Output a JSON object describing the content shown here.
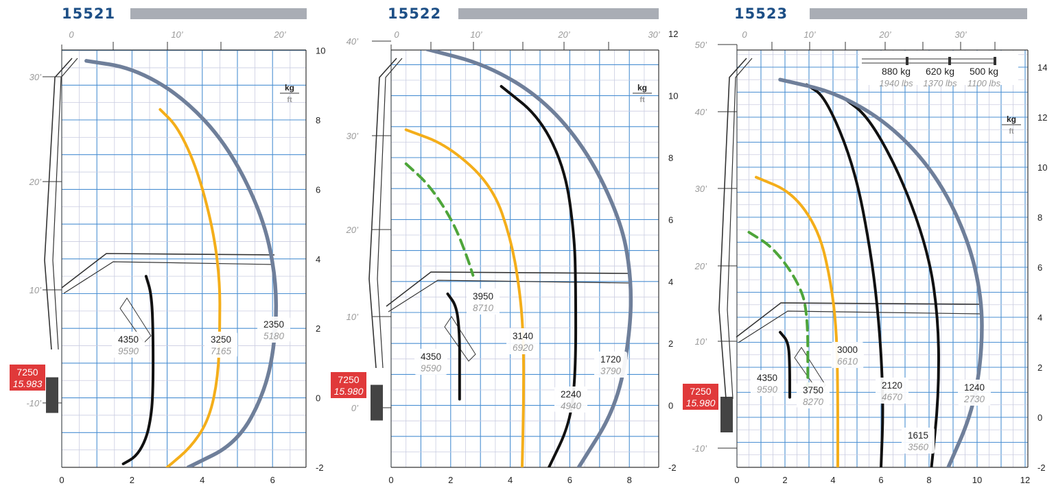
{
  "colors": {
    "blue_grid": "#4a8fd2",
    "light_grid": "#c9cce0",
    "title": "#1d4f86",
    "gray_curve": "#6f7f9a",
    "orange": "#f4ae1a",
    "black": "#111111",
    "green": "#4ea53a",
    "red": "#e0393a",
    "boom": "#333333"
  },
  "units": {
    "kg": "kg",
    "ft": "ft"
  },
  "legend": {
    "kg": [
      "880 kg",
      "620 kg",
      "500 kg"
    ],
    "lbs": [
      "1940 lbs",
      "1370 lbs",
      "1100 lbs"
    ]
  },
  "chart_data": [
    {
      "type": "line",
      "title": "15521",
      "xlabel": "",
      "ylabel": "",
      "xlim": [
        0,
        7
      ],
      "ylim": [
        -2,
        10
      ],
      "x_ticks": [
        "0",
        "2",
        "4",
        "6"
      ],
      "y_ticks": [
        "-2",
        "0",
        "2",
        "4",
        "6",
        "8",
        "10"
      ],
      "ft_x_ticks": [
        "0",
        "10’",
        "20’"
      ],
      "ft_y_ticks": [
        "-10’",
        "10’",
        "20’",
        "30’"
      ],
      "base": {
        "kg": "7250",
        "lb": "15.983"
      },
      "series": [
        {
          "name": "4350",
          "color": "black",
          "dash": false,
          "x": [
            2.4,
            2.55,
            2.6,
            2.6,
            2.5,
            2.35,
            2.1,
            1.75
          ],
          "y": [
            3.5,
            3.0,
            2.0,
            0.0,
            -0.8,
            -1.3,
            -1.7,
            -1.9
          ]
        },
        {
          "name": "3250",
          "color": "orange",
          "dash": false,
          "x": [
            2.8,
            3.3,
            3.85,
            4.3,
            4.5,
            4.5,
            4.45,
            4.2,
            3.7,
            3.0
          ],
          "y": [
            8.3,
            7.8,
            6.6,
            4.9,
            3.4,
            2.0,
            0.6,
            -0.6,
            -1.4,
            -2.0
          ]
        },
        {
          "name": "2350",
          "color": "gray",
          "dash": false,
          "x": [
            0.7,
            2.0,
            3.4,
            4.7,
            5.7,
            6.1,
            6.1,
            5.8,
            5.0,
            3.6
          ],
          "y": [
            9.7,
            9.5,
            8.7,
            7.3,
            5.3,
            3.5,
            1.8,
            0.2,
            -1.3,
            -2.0
          ]
        }
      ],
      "labels": [
        {
          "kg": "4350",
          "lb": "9590"
        },
        {
          "kg": "3250",
          "lb": "7165"
        },
        {
          "kg": "2350",
          "lb": "5180"
        }
      ]
    },
    {
      "type": "line",
      "title": "15522",
      "xlabel": "",
      "ylabel": "",
      "xlim": [
        0,
        9
      ],
      "ylim": [
        -2,
        12
      ],
      "x_ticks": [
        "0",
        "2",
        "4",
        "6",
        "8"
      ],
      "y_ticks": [
        "-2",
        "0",
        "2",
        "4",
        "6",
        "8",
        "10",
        "12"
      ],
      "ft_x_ticks": [
        "0",
        "10’",
        "20’",
        "30’"
      ],
      "ft_y_ticks": [
        "0’",
        "10’",
        "20’",
        "30’",
        "40’"
      ],
      "base": {
        "kg": "7250",
        "lb": "15.980"
      },
      "series": [
        {
          "name": "3950",
          "color": "green",
          "dash": true,
          "x": [
            0.5,
            1.3,
            2.1,
            2.55,
            2.75
          ],
          "y": [
            7.8,
            7.1,
            5.9,
            4.8,
            4.2
          ]
        },
        {
          "name": "4350",
          "color": "black",
          "dash": false,
          "x": [
            1.9,
            2.2,
            2.3,
            2.3,
            2.3
          ],
          "y": [
            3.6,
            3.2,
            2.3,
            1.2,
            0.2
          ]
        },
        {
          "name": "3140",
          "color": "orange",
          "dash": false,
          "x": [
            0.5,
            1.9,
            3.4,
            4.05,
            4.35,
            4.45,
            4.45,
            4.4
          ],
          "y": [
            8.9,
            8.4,
            7.1,
            5.3,
            3.5,
            2.0,
            0.0,
            -2.0
          ]
        },
        {
          "name": "2240",
          "color": "black",
          "dash": false,
          "x": [
            3.7,
            5.0,
            5.85,
            6.15,
            6.2,
            6.2,
            6.0,
            5.3
          ],
          "y": [
            10.3,
            9.3,
            7.6,
            5.5,
            4.0,
            1.0,
            -0.6,
            -2.0
          ]
        },
        {
          "name": "1720",
          "color": "gray",
          "dash": false,
          "x": [
            1.2,
            3.2,
            5.1,
            6.6,
            7.7,
            8.05,
            8.05,
            7.6,
            6.3
          ],
          "y": [
            11.5,
            11.0,
            9.9,
            8.2,
            6.0,
            4.3,
            2.5,
            0.0,
            -2.0
          ]
        }
      ],
      "labels": [
        {
          "kg": "3950",
          "lb": "8710"
        },
        {
          "kg": "4350",
          "lb": "9590"
        },
        {
          "kg": "3140",
          "lb": "6920"
        },
        {
          "kg": "2240",
          "lb": "4940"
        },
        {
          "kg": "1720",
          "lb": "3790"
        }
      ]
    },
    {
      "type": "line",
      "title": "15523",
      "xlabel": "",
      "ylabel": "",
      "xlim": [
        0,
        12
      ],
      "ylim": [
        -2,
        15
      ],
      "x_ticks": [
        "0",
        "2",
        "4",
        "6",
        "8",
        "10",
        "12"
      ],
      "y_ticks": [
        "-2",
        "0",
        "2",
        "4",
        "6",
        "8",
        "10",
        "12",
        "14"
      ],
      "ft_x_ticks": [
        "0",
        "10’",
        "20’",
        "30’"
      ],
      "ft_y_ticks": [
        "-10’",
        "10’",
        "20’",
        "30’",
        "40’",
        "50’"
      ],
      "base": {
        "kg": "7250",
        "lb": "15.980"
      },
      "series": [
        {
          "name": "3750",
          "color": "green",
          "dash": true,
          "x": [
            0.5,
            1.5,
            2.5,
            2.95,
            2.95
          ],
          "y": [
            7.4,
            6.8,
            5.5,
            4.3,
            1.2
          ]
        },
        {
          "name": "4350",
          "color": "black",
          "dash": false,
          "x": [
            1.8,
            2.15,
            2.2,
            2.2
          ],
          "y": [
            3.4,
            3.0,
            2.0,
            0.8
          ]
        },
        {
          "name": "3000",
          "color": "orange",
          "dash": false,
          "x": [
            0.8,
            2.3,
            3.4,
            3.9,
            4.15,
            4.2,
            4.2
          ],
          "y": [
            9.6,
            9.0,
            7.5,
            5.5,
            3.5,
            1.0,
            -2.0
          ]
        },
        {
          "name": "2120",
          "color": "black",
          "dash": false,
          "x": [
            2.9,
            3.7,
            4.9,
            5.6,
            5.95,
            6.1,
            6.0
          ],
          "y": [
            13.3,
            12.8,
            10.0,
            6.5,
            3.5,
            0.5,
            -2.0
          ]
        },
        {
          "name": "1615",
          "color": "black",
          "dash": false,
          "x": [
            4.4,
            5.5,
            6.9,
            8.0,
            8.4,
            8.4,
            8.1
          ],
          "y": [
            12.8,
            12.0,
            9.5,
            6.5,
            3.8,
            0.8,
            -2.0
          ]
        },
        {
          "name": "1240",
          "color": "gray",
          "dash": false,
          "x": [
            1.8,
            4.1,
            6.4,
            8.3,
            9.6,
            10.2,
            10.2,
            9.8,
            8.8
          ],
          "y": [
            13.5,
            13.0,
            11.7,
            9.7,
            7.2,
            4.8,
            2.5,
            0.2,
            -2.0
          ]
        }
      ],
      "labels": [
        {
          "kg": "4350",
          "lb": "9590"
        },
        {
          "kg": "3750",
          "lb": "8270"
        },
        {
          "kg": "3000",
          "lb": "6610"
        },
        {
          "kg": "2120",
          "lb": "4670"
        },
        {
          "kg": "1615",
          "lb": "3560"
        },
        {
          "kg": "1240",
          "lb": "2730"
        }
      ]
    }
  ]
}
